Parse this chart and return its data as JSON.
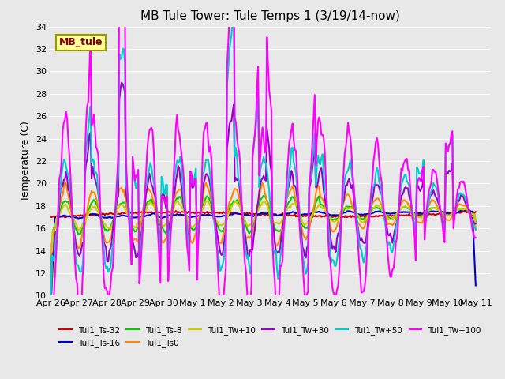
{
  "title": "MB Tule Tower: Tule Temps 1 (3/19/14-now)",
  "ylabel": "Temperature (C)",
  "ylim": [
    10,
    34
  ],
  "yticks": [
    10,
    12,
    14,
    16,
    18,
    20,
    22,
    24,
    26,
    28,
    30,
    32,
    34
  ],
  "bg_color": "#e8e8e8",
  "series": [
    {
      "label": "Tul1_Ts-32",
      "color": "#cc0000",
      "lw": 1.5
    },
    {
      "label": "Tul1_Ts-16",
      "color": "#0000cc",
      "lw": 1.5
    },
    {
      "label": "Tul1_Ts-8",
      "color": "#00cc00",
      "lw": 1.5
    },
    {
      "label": "Tul1_Ts0",
      "color": "#ff8800",
      "lw": 1.5
    },
    {
      "label": "Tul1_Tw+10",
      "color": "#cccc00",
      "lw": 1.5
    },
    {
      "label": "Tul1_Tw+30",
      "color": "#9900cc",
      "lw": 1.5
    },
    {
      "label": "Tul1_Tw+50",
      "color": "#00cccc",
      "lw": 1.5
    },
    {
      "label": "Tul1_Tw+100",
      "color": "#ff00ff",
      "lw": 1.5
    }
  ],
  "xtick_labels": [
    "Apr 26",
    "Apr 27",
    "Apr 28",
    "Apr 29",
    "Apr 30",
    "May 1",
    "May 2",
    "May 3",
    "May 4",
    "May 5",
    "May 6",
    "May 7",
    "May 8",
    "May 9",
    "May 10",
    "May 11"
  ],
  "annotation": "MB_tule",
  "annotation_color": "#800000",
  "annotation_bg": "#ffff99",
  "annotation_border": "#999900"
}
